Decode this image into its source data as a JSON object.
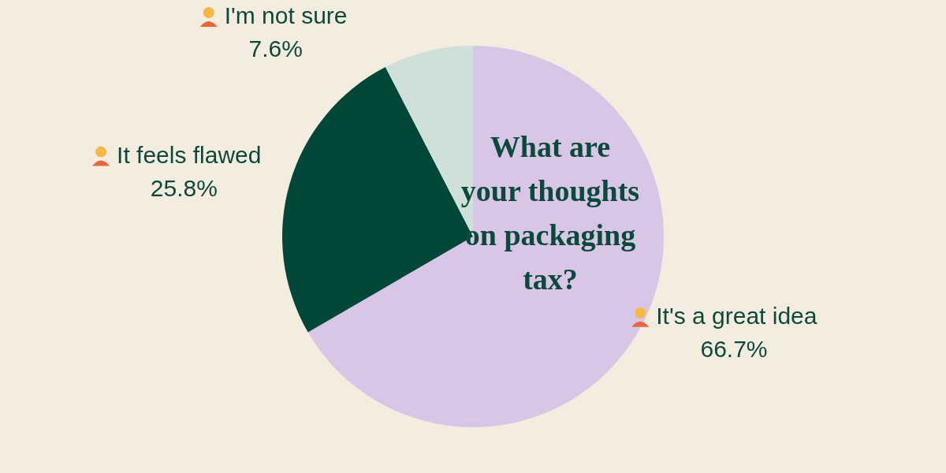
{
  "chart_data": {
    "type": "pie",
    "title": "What are\nyour thoughts\non packaging\ntax?",
    "categories": [
      "It's a great idea",
      "It feels flawed",
      "I'm not sure"
    ],
    "values": [
      66.7,
      25.8,
      7.6
    ],
    "colors": [
      "#d9c6e6",
      "#00473a",
      "#cfe0d9"
    ],
    "value_labels": [
      "66.7%",
      "25.8%",
      "7.6%"
    ]
  }
}
